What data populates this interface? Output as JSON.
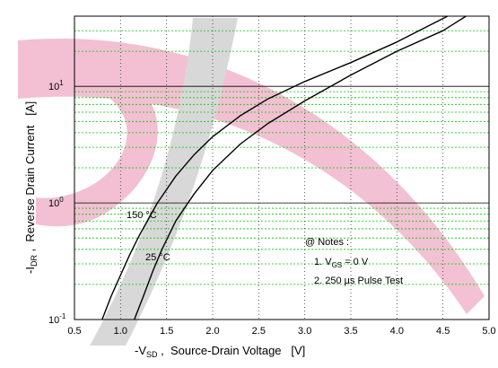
{
  "chart_data": {
    "type": "line",
    "title": "",
    "xlabel": "-V",
    "xlabel_sub": "SD",
    "xlabel_rest": " ,  Source-Drain Voltage   [V]",
    "ylabel": "-I",
    "ylabel_sub": "DR",
    "ylabel_rest": " ,  Reverse Drain Current   [A]",
    "xlim": [
      0.5,
      5.0
    ],
    "ylim": [
      0.1,
      40
    ],
    "yscale": "log",
    "grid": true,
    "x_ticks": [
      0.5,
      1.0,
      1.5,
      2.0,
      2.5,
      3.0,
      3.5,
      4.0,
      4.5,
      5.0
    ],
    "x_tick_labels": [
      "0.5",
      "1.0",
      "1.5",
      "2.0",
      "2.5",
      "3.0",
      "3.5",
      "4.0",
      "4.5",
      "5.0"
    ],
    "y_ticks": [
      {
        "value": 0.1,
        "base": "10",
        "exp": "-1"
      },
      {
        "value": 1,
        "base": "10",
        "exp": "0"
      },
      {
        "value": 10,
        "base": "10",
        "exp": "1"
      }
    ],
    "series": [
      {
        "name": "150 °C",
        "label": "150 °C",
        "x": [
          0.8,
          0.9,
          1.0,
          1.1,
          1.2,
          1.3,
          1.4,
          1.6,
          1.8,
          2.0,
          2.3,
          2.6,
          3.0,
          3.5,
          4.0,
          4.55
        ],
        "y": [
          0.1,
          0.16,
          0.24,
          0.36,
          0.52,
          0.72,
          1.0,
          1.7,
          2.6,
          3.7,
          5.6,
          7.8,
          11.0,
          16.0,
          24.0,
          40.0
        ]
      },
      {
        "name": "25 °C",
        "label": "25 °C",
        "x": [
          1.15,
          1.25,
          1.35,
          1.45,
          1.6,
          1.8,
          2.0,
          2.3,
          2.6,
          3.0,
          3.5,
          4.0,
          4.5,
          4.75
        ],
        "y": [
          0.1,
          0.16,
          0.26,
          0.4,
          0.7,
          1.2,
          1.9,
          3.2,
          4.8,
          7.5,
          12.5,
          20.0,
          30.0,
          40.0
        ]
      }
    ],
    "notes": {
      "title": "@ Notes :",
      "line1_prefix": "1. V",
      "line1_sub": "GS",
      "line1_rest": " = 0 V",
      "line2": "2. 250 µs Pulse Test"
    },
    "colors": {
      "curve": "#000000",
      "grid_major": "#000000",
      "grid_minor": "#00cc00",
      "grid_vertical": "#333333",
      "axis": "#000000",
      "watermark_red": "#d9437a",
      "watermark_gray": "#8a8a8a"
    }
  }
}
